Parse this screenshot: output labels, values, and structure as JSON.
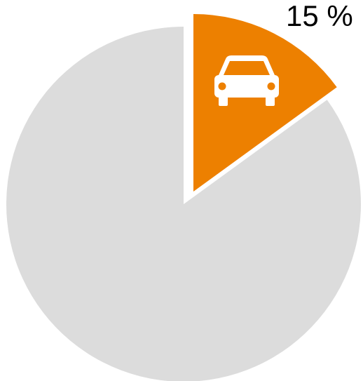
{
  "chart_data": {
    "type": "pie",
    "slices": [
      {
        "value": 15,
        "color": "#ED8000",
        "icon": "car-icon",
        "exploded": true,
        "label": "15 %"
      },
      {
        "value": 85,
        "color": "#DCDCDC",
        "exploded": false
      }
    ]
  }
}
